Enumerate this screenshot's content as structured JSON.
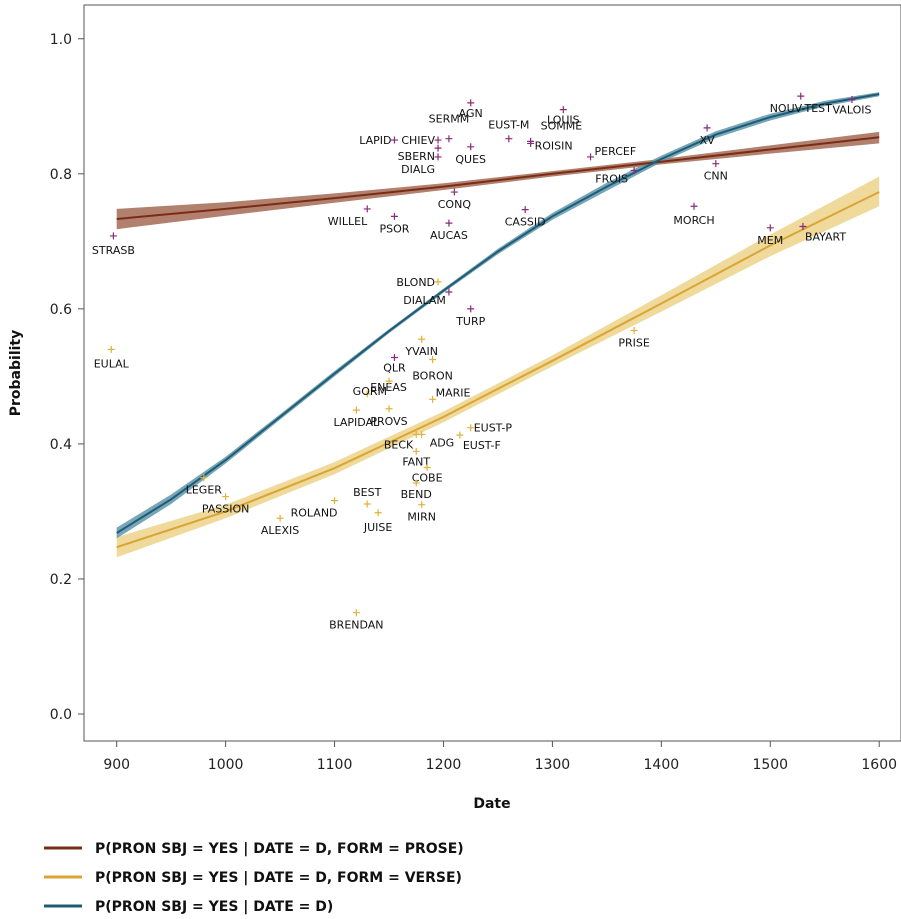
{
  "chart_data": {
    "type": "scatter",
    "xlabel": "Date",
    "ylabel": "Probability",
    "xlim": [
      870,
      1620
    ],
    "ylim": [
      -0.04,
      1.05
    ],
    "xticks": [
      900,
      1000,
      1100,
      1200,
      1300,
      1400,
      1500,
      1600
    ],
    "yticks": [
      0.0,
      0.2,
      0.4,
      0.6,
      0.8,
      1.0
    ],
    "xtick_labels": [
      "900",
      "1000",
      "1100",
      "1200",
      "1300",
      "1400",
      "1500",
      "1600"
    ],
    "ytick_labels": [
      "0.0",
      "0.2",
      "0.4",
      "0.6",
      "0.8",
      "1.0"
    ],
    "grid": false,
    "legend_position": "bottom",
    "colors": {
      "prose": "#7a2d14",
      "prose_band": "#a56a55",
      "verse": "#d9a534",
      "verse_band": "#ecd28a",
      "overall": "#1f5c74",
      "overall_band": "#5f97ac",
      "prose_points": "#8a2a7a",
      "verse_points": "#e0b23c"
    },
    "series": [
      {
        "name": "P(PRON SBJ = YES | DATE = D, FORM = PROSE)",
        "color": "#7a2d14",
        "x": [
          900,
          1000,
          1100,
          1200,
          1300,
          1400,
          1500,
          1600
        ],
        "y": [
          0.733,
          0.748,
          0.764,
          0.781,
          0.8,
          0.818,
          0.836,
          0.854
        ],
        "lower": [
          0.718,
          0.738,
          0.757,
          0.776,
          0.796,
          0.814,
          0.83,
          0.845
        ],
        "upper": [
          0.748,
          0.758,
          0.771,
          0.786,
          0.804,
          0.822,
          0.842,
          0.862
        ]
      },
      {
        "name": "P(PRON SBJ = YES | DATE = D, FORM = VERSE)",
        "color": "#d9a534",
        "x": [
          900,
          1000,
          1100,
          1200,
          1300,
          1400,
          1500,
          1600
        ],
        "y": [
          0.247,
          0.3,
          0.364,
          0.44,
          0.523,
          0.608,
          0.694,
          0.773
        ],
        "lower": [
          0.232,
          0.29,
          0.355,
          0.432,
          0.515,
          0.596,
          0.678,
          0.752
        ],
        "upper": [
          0.262,
          0.31,
          0.373,
          0.448,
          0.531,
          0.62,
          0.71,
          0.796
        ]
      },
      {
        "name": "P(PRON SBJ = YES | DATE = D)",
        "color": "#1f5c74",
        "x": [
          900,
          950,
          1000,
          1050,
          1100,
          1150,
          1200,
          1250,
          1300,
          1350,
          1400,
          1450,
          1500,
          1550,
          1600
        ],
        "y": [
          0.268,
          0.318,
          0.376,
          0.44,
          0.504,
          0.567,
          0.627,
          0.685,
          0.737,
          0.781,
          0.822,
          0.858,
          0.884,
          0.904,
          0.918
        ],
        "lower": [
          0.26,
          0.311,
          0.371,
          0.436,
          0.5,
          0.564,
          0.624,
          0.681,
          0.732,
          0.775,
          0.817,
          0.853,
          0.879,
          0.9,
          0.915
        ],
        "upper": [
          0.276,
          0.325,
          0.381,
          0.444,
          0.508,
          0.57,
          0.63,
          0.689,
          0.742,
          0.787,
          0.827,
          0.863,
          0.889,
          0.908,
          0.921
        ]
      }
    ],
    "points": [
      {
        "label": "STRASB",
        "x": 897,
        "y": 0.708,
        "form": "prose",
        "anchor": "middle",
        "dx": 0,
        "dy": 18
      },
      {
        "label": "EULAL",
        "x": 895,
        "y": 0.54,
        "form": "verse",
        "anchor": "middle",
        "dx": 0,
        "dy": 18
      },
      {
        "label": "LEGER",
        "x": 980,
        "y": 0.35,
        "form": "verse",
        "anchor": "middle",
        "dx": 0,
        "dy": 16
      },
      {
        "label": "PASSION",
        "x": 1000,
        "y": 0.322,
        "form": "verse",
        "anchor": "middle",
        "dx": 0,
        "dy": 16
      },
      {
        "label": "ALEXIS",
        "x": 1050,
        "y": 0.29,
        "form": "verse",
        "anchor": "middle",
        "dx": 0,
        "dy": 16
      },
      {
        "label": "ROLAND",
        "x": 1100,
        "y": 0.316,
        "form": "verse",
        "anchor": "end",
        "dx": 3,
        "dy": 16
      },
      {
        "label": "BEST",
        "x": 1130,
        "y": 0.311,
        "form": "verse",
        "anchor": "middle",
        "dx": 0,
        "dy": -8
      },
      {
        "label": "JUISE",
        "x": 1140,
        "y": 0.298,
        "form": "verse",
        "anchor": "middle",
        "dx": 0,
        "dy": 18
      },
      {
        "label": "LAPIDAL",
        "x": 1120,
        "y": 0.45,
        "form": "verse",
        "anchor": "middle",
        "dx": 0,
        "dy": 16
      },
      {
        "label": "ENEAS",
        "x": 1130,
        "y": 0.474,
        "form": "verse",
        "anchor": "start",
        "dx": 3,
        "dy": -3
      },
      {
        "label": "PROVS",
        "x": 1150,
        "y": 0.452,
        "form": "verse",
        "anchor": "middle",
        "dx": 0,
        "dy": 16
      },
      {
        "label": "MARIE",
        "x": 1190,
        "y": 0.466,
        "form": "verse",
        "anchor": "start",
        "dx": 3,
        "dy": -3
      },
      {
        "label": "BECK",
        "x": 1175,
        "y": 0.414,
        "form": "verse",
        "anchor": "end",
        "dx": -3,
        "dy": 14
      },
      {
        "label": "ADG",
        "x": 1180,
        "y": 0.414,
        "form": "verse",
        "anchor": "start",
        "dx": 8,
        "dy": 12
      },
      {
        "label": "EUST-P",
        "x": 1225,
        "y": 0.424,
        "form": "verse",
        "anchor": "start",
        "dx": 3,
        "dy": 4
      },
      {
        "label": "EUST-F",
        "x": 1215,
        "y": 0.413,
        "form": "verse",
        "anchor": "start",
        "dx": 3,
        "dy": 14
      },
      {
        "label": "FANT",
        "x": 1175,
        "y": 0.389,
        "form": "verse",
        "anchor": "middle",
        "dx": 0,
        "dy": 14
      },
      {
        "label": "COBE",
        "x": 1185,
        "y": 0.365,
        "form": "verse",
        "anchor": "middle",
        "dx": 0,
        "dy": 14
      },
      {
        "label": "BEND",
        "x": 1175,
        "y": 0.342,
        "form": "verse",
        "anchor": "middle",
        "dx": 0,
        "dy": 15
      },
      {
        "label": "MIRN",
        "x": 1180,
        "y": 0.31,
        "form": "verse",
        "anchor": "middle",
        "dx": 0,
        "dy": 16
      },
      {
        "label": "GORM",
        "x": 1150,
        "y": 0.493,
        "form": "verse",
        "anchor": "end",
        "dx": -2,
        "dy": 14
      },
      {
        "label": "QLR",
        "x": 1155,
        "y": 0.528,
        "form": "prose",
        "anchor": "middle",
        "dx": 0,
        "dy": 14
      },
      {
        "label": "BORON",
        "x": 1190,
        "y": 0.525,
        "form": "verse",
        "anchor": "middle",
        "dx": 0,
        "dy": 20
      },
      {
        "label": "YVAIN",
        "x": 1180,
        "y": 0.555,
        "form": "verse",
        "anchor": "middle",
        "dx": 0,
        "dy": 16
      },
      {
        "label": "BRENDAN",
        "x": 1120,
        "y": 0.15,
        "form": "verse",
        "anchor": "middle",
        "dx": 0,
        "dy": 16
      },
      {
        "label": "BLOND",
        "x": 1195,
        "y": 0.64,
        "form": "verse",
        "anchor": "end",
        "dx": -3,
        "dy": 4
      },
      {
        "label": "DIALAM",
        "x": 1205,
        "y": 0.625,
        "form": "prose",
        "anchor": "end",
        "dx": -3,
        "dy": 12
      },
      {
        "label": "TURP",
        "x": 1225,
        "y": 0.6,
        "form": "prose",
        "anchor": "middle",
        "dx": 0,
        "dy": 16
      },
      {
        "label": "PRISE",
        "x": 1375,
        "y": 0.568,
        "form": "verse",
        "anchor": "middle",
        "dx": 0,
        "dy": 16
      },
      {
        "label": "WILLEL",
        "x": 1130,
        "y": 0.748,
        "form": "prose",
        "anchor": "end",
        "dx": 0,
        "dy": 16
      },
      {
        "label": "PSOR",
        "x": 1155,
        "y": 0.737,
        "form": "prose",
        "anchor": "middle",
        "dx": 0,
        "dy": 16
      },
      {
        "label": "AUCAS",
        "x": 1205,
        "y": 0.727,
        "form": "prose",
        "anchor": "middle",
        "dx": 0,
        "dy": 16
      },
      {
        "label": "CONQ",
        "x": 1210,
        "y": 0.773,
        "form": "prose",
        "anchor": "middle",
        "dx": 0,
        "dy": 16
      },
      {
        "label": "CASSID",
        "x": 1275,
        "y": 0.747,
        "form": "prose",
        "anchor": "middle",
        "dx": 0,
        "dy": 16
      },
      {
        "label": "LAPID",
        "x": 1155,
        "y": 0.85,
        "form": "prose",
        "anchor": "end",
        "dx": -3,
        "dy": 4
      },
      {
        "label": "CHIEV",
        "x": 1195,
        "y": 0.85,
        "form": "prose",
        "anchor": "end",
        "dx": -3,
        "dy": 4
      },
      {
        "label": "SBERN",
        "x": 1195,
        "y": 0.838,
        "form": "prose",
        "anchor": "end",
        "dx": -3,
        "dy": 12
      },
      {
        "label": "DIALG",
        "x": 1195,
        "y": 0.825,
        "form": "prose",
        "anchor": "end",
        "dx": -3,
        "dy": 16
      },
      {
        "label": "SERMM",
        "x": 1205,
        "y": 0.852,
        "form": "prose",
        "anchor": "middle",
        "dx": 0,
        "dy": -16
      },
      {
        "label": "AGN",
        "x": 1225,
        "y": 0.905,
        "form": "prose",
        "anchor": "middle",
        "dx": 0,
        "dy": 14
      },
      {
        "label": "QUES",
        "x": 1225,
        "y": 0.84,
        "form": "prose",
        "anchor": "middle",
        "dx": 0,
        "dy": 16
      },
      {
        "label": "EUST-M",
        "x": 1260,
        "y": 0.852,
        "form": "prose",
        "anchor": "middle",
        "dx": 0,
        "dy": -10
      },
      {
        "label": "SOMME",
        "x": 1280,
        "y": 0.848,
        "form": "prose",
        "anchor": "start",
        "dx": 10,
        "dy": -12
      },
      {
        "label": "ROISIN",
        "x": 1280,
        "y": 0.845,
        "form": "prose",
        "anchor": "start",
        "dx": 4,
        "dy": 6
      },
      {
        "label": "LOUIS",
        "x": 1310,
        "y": 0.895,
        "form": "prose",
        "anchor": "middle",
        "dx": 0,
        "dy": 14
      },
      {
        "label": "PERCEF",
        "x": 1335,
        "y": 0.825,
        "form": "prose",
        "anchor": "start",
        "dx": 4,
        "dy": -2
      },
      {
        "label": "FROIS",
        "x": 1375,
        "y": 0.805,
        "form": "prose",
        "anchor": "end",
        "dx": -6,
        "dy": 12
      },
      {
        "label": "XV",
        "x": 1442,
        "y": 0.868,
        "form": "prose",
        "anchor": "middle",
        "dx": 0,
        "dy": 16
      },
      {
        "label": "CNN",
        "x": 1450,
        "y": 0.815,
        "form": "prose",
        "anchor": "middle",
        "dx": 0,
        "dy": 16
      },
      {
        "label": "MORCH",
        "x": 1430,
        "y": 0.752,
        "form": "prose",
        "anchor": "middle",
        "dx": 0,
        "dy": 18
      },
      {
        "label": "MEM",
        "x": 1500,
        "y": 0.72,
        "form": "prose",
        "anchor": "middle",
        "dx": 0,
        "dy": 16
      },
      {
        "label": "BAYART",
        "x": 1530,
        "y": 0.722,
        "form": "prose",
        "anchor": "start",
        "dx": 2,
        "dy": 14
      },
      {
        "label": "NOUV-TEST",
        "x": 1528,
        "y": 0.915,
        "form": "prose",
        "anchor": "middle",
        "dx": 0,
        "dy": 16
      },
      {
        "label": "VALOIS",
        "x": 1575,
        "y": 0.91,
        "form": "prose",
        "anchor": "middle",
        "dx": 0,
        "dy": 14
      }
    ]
  }
}
